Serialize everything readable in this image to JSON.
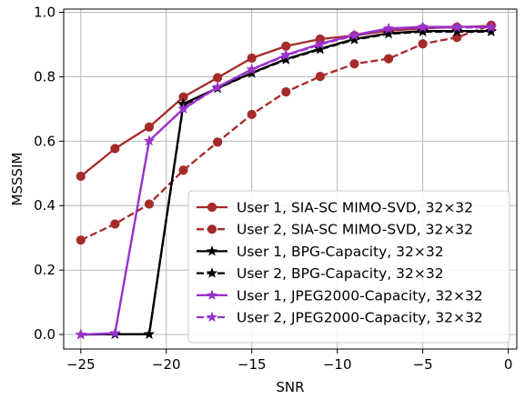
{
  "chart_data": {
    "type": "line",
    "title": "",
    "xlabel": "SNR",
    "ylabel": "MSSSIM",
    "xlim": [
      -26,
      0.5
    ],
    "ylim": [
      -0.045,
      1.01
    ],
    "xticks": [
      -25,
      -20,
      -15,
      -10,
      -5,
      0
    ],
    "xtick_labels": [
      "−25",
      "−20",
      "−15",
      "−10",
      "−5",
      "0"
    ],
    "yticks": [
      0.0,
      0.2,
      0.4,
      0.6,
      0.8,
      1.0
    ],
    "ytick_labels": [
      "0.0",
      "0.2",
      "0.4",
      "0.6",
      "0.8",
      "1.0"
    ],
    "grid": true,
    "legend_placement": "lower-right",
    "series": [
      {
        "name": "User 1, SIA-SC MIMO-SVD, 32×32",
        "color": "#a52a2a",
        "linestyle": "solid",
        "marker": "circle",
        "x": [
          -25,
          -23,
          -21,
          -19,
          -17,
          -15,
          -13,
          -11,
          -9,
          -7,
          -5,
          -3,
          -1
        ],
        "y": [
          0.491,
          0.577,
          0.644,
          0.737,
          0.797,
          0.858,
          0.895,
          0.917,
          0.928,
          0.943,
          0.95,
          0.954,
          0.958
        ]
      },
      {
        "name": "User 2, SIA-SC MIMO-SVD, 32×32",
        "color": "#a52a2a",
        "linestyle": "dashed",
        "marker": "circle",
        "x": [
          -25,
          -23,
          -21,
          -19,
          -17,
          -15,
          -13,
          -11,
          -9,
          -7,
          -5,
          -3,
          -1
        ],
        "y": [
          0.293,
          0.343,
          0.405,
          0.51,
          0.597,
          0.683,
          0.753,
          0.801,
          0.84,
          0.856,
          0.902,
          0.922,
          0.96
        ]
      },
      {
        "name": "User 1, BPG-Capacity, 32×32",
        "color": "#000000",
        "linestyle": "solid",
        "marker": "star",
        "x": [
          -25,
          -23,
          -21,
          -19,
          -17,
          -15,
          -13,
          -11,
          -9,
          -7,
          -5,
          -3,
          -1
        ],
        "y": [
          0.0,
          0.001,
          0.001,
          0.716,
          0.765,
          0.812,
          0.855,
          0.887,
          0.917,
          0.935,
          0.942,
          0.942,
          0.942
        ]
      },
      {
        "name": "User 2, BPG-Capacity, 32×32",
        "color": "#000000",
        "linestyle": "dashed",
        "marker": "star",
        "x": [
          -25,
          -23,
          -21,
          -19,
          -17,
          -15,
          -13,
          -11,
          -9,
          -7,
          -5,
          -3,
          -1
        ],
        "y": [
          0.0,
          0.001,
          0.001,
          0.712,
          0.764,
          0.811,
          0.853,
          0.885,
          0.915,
          0.933,
          0.94,
          0.94,
          0.94
        ]
      },
      {
        "name": "User 1, JPEG2000-Capacity, 32×32",
        "color": "#9932cc",
        "linestyle": "solid",
        "marker": "star",
        "x": [
          -25,
          -23,
          -21,
          -19,
          -17,
          -15,
          -13,
          -11,
          -9,
          -7,
          -5,
          -3,
          -1
        ],
        "y": [
          0.0,
          0.004,
          0.601,
          0.701,
          0.768,
          0.823,
          0.868,
          0.902,
          0.93,
          0.95,
          0.955,
          0.955,
          0.955
        ]
      },
      {
        "name": "User 2, JPEG2000-Capacity, 32×32",
        "color": "#9932cc",
        "linestyle": "dashed",
        "marker": "star",
        "x": [
          -25,
          -23,
          -21,
          -19,
          -17,
          -15,
          -13,
          -11,
          -9,
          -7,
          -5,
          -3,
          -1
        ],
        "y": [
          0.0,
          0.004,
          0.601,
          0.7,
          0.767,
          0.822,
          0.866,
          0.9,
          0.928,
          0.948,
          0.953,
          0.953,
          0.953
        ]
      }
    ]
  }
}
